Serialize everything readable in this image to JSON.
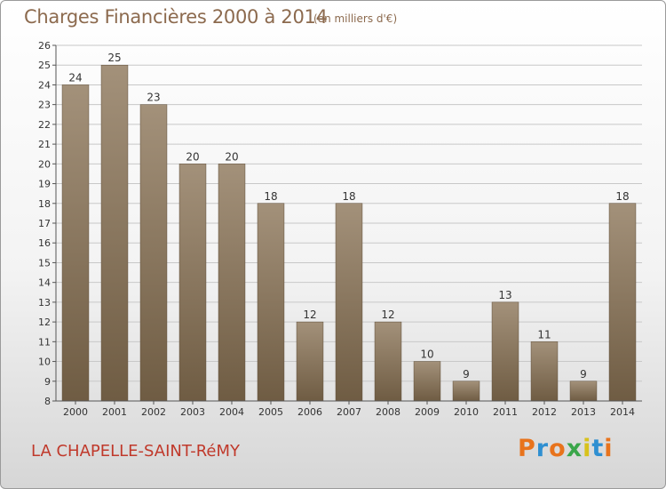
{
  "header": {
    "title": "Charges Financières 2000 à 2014",
    "subtitle": "(en milliers d'€)"
  },
  "footer": {
    "commune": "LA CHAPELLE-SAINT-RéMY",
    "logo": "Proxiti",
    "logo_colors": [
      "#e8731c",
      "#2f8fd1",
      "#e8731c",
      "#3aa64a",
      "#d8c21c",
      "#2f8fd1",
      "#e8731c"
    ]
  },
  "colors": {
    "bar_top": "#a3917a",
    "bar_bottom": "#6f5c43",
    "axis": "#555555",
    "grid": "#c8c8c8",
    "text": "#333333"
  },
  "chart_data": {
    "type": "bar",
    "categories": [
      "2000",
      "2001",
      "2002",
      "2003",
      "2004",
      "2005",
      "2006",
      "2007",
      "2008",
      "2009",
      "2010",
      "2011",
      "2012",
      "2013",
      "2014"
    ],
    "values": [
      24,
      25,
      23,
      20,
      20,
      18,
      12,
      18,
      12,
      10,
      9,
      13,
      11,
      9,
      18
    ],
    "data_labels": [
      "24",
      "25",
      "23",
      "20",
      "20",
      "18",
      "12",
      "18",
      "12",
      "10",
      "9",
      "13",
      "11",
      "9",
      "18"
    ],
    "yticks": [
      "8",
      "9",
      "10",
      "11",
      "12",
      "13",
      "14",
      "15",
      "16",
      "17",
      "18",
      "19",
      "20",
      "21",
      "22",
      "23",
      "24",
      "25",
      "26"
    ],
    "ylim": [
      8,
      26
    ],
    "grid": true
  }
}
